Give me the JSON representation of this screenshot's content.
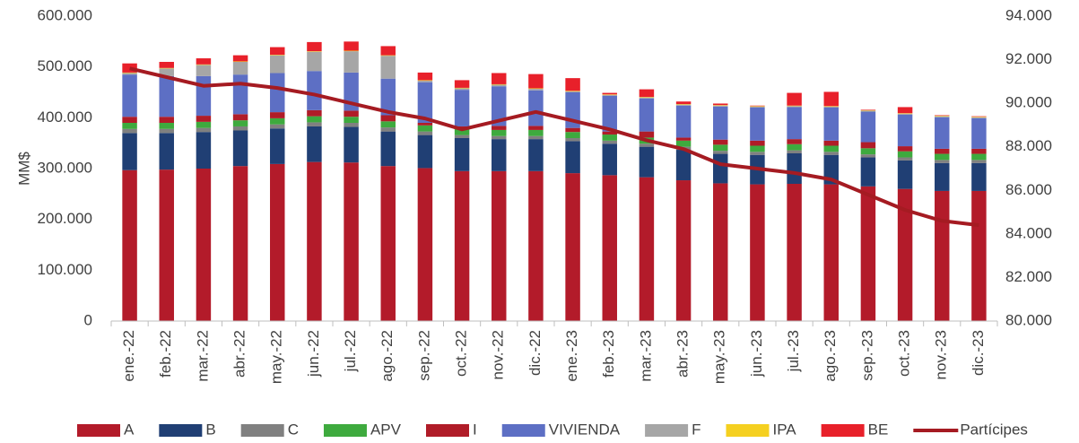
{
  "chart_data": {
    "type": "stacked-bar-line",
    "y_label": "MM$",
    "categories": [
      "ene.-22",
      "feb.-22",
      "mar.-22",
      "abr.-22",
      "may.-22",
      "jun.-22",
      "jul.-22",
      "ago.-22",
      "sep.-22",
      "oct.-22",
      "nov.-22",
      "dic.-22",
      "ene.-23",
      "feb.-23",
      "mar.-23",
      "abr.-23",
      "may.-23",
      "jun.-23",
      "jul.-23",
      "ago.-23",
      "sep.-23",
      "oct.-23",
      "nov.-23",
      "dic.-23"
    ],
    "ylim": [
      0,
      600000
    ],
    "yticks": [
      0,
      {
        "value": 100000,
        "label": "100.000"
      },
      {
        "value": 200000,
        "label": "200.000"
      },
      {
        "value": 300000,
        "label": "300.000"
      },
      {
        "value": 400000,
        "label": "400.000"
      },
      {
        "value": 500000,
        "label": "500.000"
      },
      {
        "value": 600000,
        "label": "600.000"
      }
    ],
    "y2lim": [
      80000,
      94000
    ],
    "y2ticks": [
      {
        "value": 80000,
        "label": "80.000"
      },
      {
        "value": 82000,
        "label": "82.000"
      },
      {
        "value": 84000,
        "label": "84.000"
      },
      {
        "value": 86000,
        "label": "86.000"
      },
      {
        "value": 88000,
        "label": "88.000"
      },
      {
        "value": 90000,
        "label": "90.000"
      },
      {
        "value": 92000,
        "label": "92.000"
      },
      {
        "value": 94000,
        "label": "94.000"
      }
    ],
    "series": [
      {
        "name": "A",
        "color": "#b31b2a",
        "values": [
          297000,
          298000,
          300000,
          305000,
          309000,
          313000,
          312000,
          305000,
          301000,
          295000,
          295000,
          295000,
          291000,
          287000,
          283000,
          277000,
          271000,
          269000,
          270000,
          269000,
          265000,
          260000,
          256000,
          256000
        ]
      },
      {
        "name": "B",
        "color": "#203f74",
        "values": [
          73000,
          72000,
          72000,
          70000,
          70000,
          70000,
          70000,
          68000,
          65000,
          65000,
          63000,
          63000,
          63000,
          62000,
          60000,
          60000,
          58000,
          58000,
          60000,
          58000,
          57000,
          56000,
          55000,
          55000
        ]
      },
      {
        "name": "C",
        "color": "#808080",
        "values": [
          8000,
          8000,
          8000,
          8000,
          8000,
          8000,
          8000,
          8000,
          7000,
          6000,
          6000,
          6000,
          6000,
          6000,
          6000,
          6000,
          6000,
          6000,
          6000,
          6000,
          6000,
          6000,
          6000,
          6000
        ]
      },
      {
        "name": "APV",
        "color": "#3eaa3e",
        "values": [
          12000,
          12000,
          12000,
          12000,
          12000,
          12000,
          12000,
          12000,
          12000,
          12000,
          12000,
          12000,
          12000,
          12000,
          12000,
          12000,
          12000,
          12000,
          12000,
          12000,
          12000,
          12000,
          12000,
          12000
        ]
      },
      {
        "name": "I",
        "color": "#b01c28",
        "values": [
          12000,
          12000,
          12000,
          12000,
          12000,
          12000,
          12000,
          12000,
          5000,
          5000,
          8000,
          8000,
          8000,
          6000,
          12000,
          6000,
          10000,
          10000,
          10000,
          10000,
          12000,
          10000,
          10000,
          10000
        ]
      },
      {
        "name": "VIVIENDA",
        "color": "#5d6fc4",
        "values": [
          83000,
          80000,
          78000,
          78000,
          77000,
          77000,
          75000,
          72000,
          80000,
          72000,
          78000,
          70000,
          70000,
          70000,
          65000,
          63000,
          65000,
          65000,
          63000,
          65000,
          60000,
          62000,
          62000,
          60000
        ]
      },
      {
        "name": "F",
        "color": "#a6a6a6",
        "values": [
          3000,
          15000,
          22000,
          25000,
          35000,
          38000,
          42000,
          45000,
          3000,
          3000,
          3000,
          3000,
          2000,
          2000,
          2000,
          2000,
          2000,
          2000,
          2000,
          2000,
          2000,
          2000,
          2000,
          2000
        ]
      },
      {
        "name": "IPA",
        "color": "#f5d020",
        "values": [
          1000,
          1000,
          1000,
          1000,
          1000,
          1000,
          1000,
          1000,
          1000,
          1000,
          1000,
          1000,
          1000,
          1000,
          1000,
          1000,
          1000,
          1000,
          1000,
          1000,
          1000,
          1000,
          1000,
          1000
        ]
      },
      {
        "name": "BE",
        "color": "#e8202a",
        "values": [
          18000,
          12000,
          12000,
          12000,
          15000,
          18000,
          18000,
          18000,
          15000,
          15000,
          22000,
          28000,
          25000,
          3000,
          15000,
          5000,
          3000,
          1000,
          25000,
          28000,
          1000,
          12000,
          1000,
          1000
        ]
      },
      {
        "name": "Partícipes",
        "color": "#a51b22",
        "type": "line",
        "axis": "y2",
        "values": [
          91600,
          91200,
          90800,
          90900,
          90700,
          90400,
          90000,
          89600,
          89300,
          88800,
          89200,
          89600,
          89200,
          88800,
          88300,
          87900,
          87200,
          87000,
          86800,
          86500,
          85800,
          85100,
          84600,
          84400
        ]
      }
    ]
  }
}
